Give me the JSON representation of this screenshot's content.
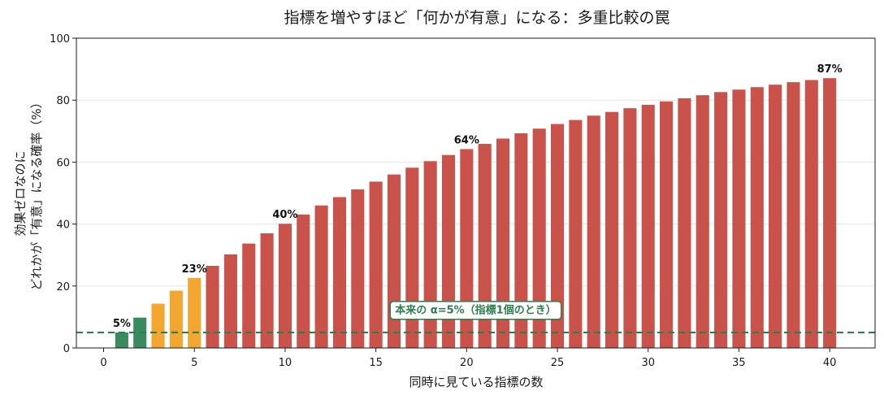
{
  "chart_data": {
    "type": "bar",
    "title": "指標を増やすほど「何かが有意」になる：多重比較の罠",
    "xlabel": "同時に見ている指標の数",
    "ylabel_lines": [
      "効果ゼロなのに",
      "どれかが「有意」になる確率（%）"
    ],
    "x": [
      1,
      2,
      3,
      4,
      5,
      6,
      7,
      8,
      9,
      10,
      11,
      12,
      13,
      14,
      15,
      16,
      17,
      18,
      19,
      20,
      21,
      22,
      23,
      24,
      25,
      26,
      27,
      28,
      29,
      30,
      31,
      32,
      33,
      34,
      35,
      36,
      37,
      38,
      39,
      40
    ],
    "values": [
      5.0,
      9.8,
      14.3,
      18.5,
      22.6,
      26.5,
      30.2,
      33.7,
      37.0,
      40.1,
      43.1,
      46.0,
      48.7,
      51.2,
      53.7,
      56.0,
      58.2,
      60.3,
      62.3,
      64.2,
      65.9,
      67.6,
      69.3,
      70.8,
      72.3,
      73.6,
      75.0,
      76.2,
      77.4,
      78.5,
      79.6,
      80.6,
      81.6,
      82.6,
      83.4,
      84.2,
      85.0,
      85.8,
      86.5,
      87.1
    ],
    "colors": {
      "low": "#3a8a60",
      "mid": "#f2a630",
      "high": "#c9524a",
      "reference": "#2e7d4f"
    },
    "color_bands": [
      {
        "from": 1,
        "to": 2,
        "color": "low"
      },
      {
        "from": 3,
        "to": 5,
        "color": "mid"
      },
      {
        "from": 6,
        "to": 40,
        "color": "high"
      }
    ],
    "annotations": [
      {
        "x": 1,
        "text": "5%"
      },
      {
        "x": 5,
        "text": "23%"
      },
      {
        "x": 10,
        "text": "40%"
      },
      {
        "x": 20,
        "text": "64%"
      },
      {
        "x": 40,
        "text": "87%"
      }
    ],
    "reference_line": {
      "y": 5,
      "label": "本来の α=5%（指標1個のとき）"
    },
    "xlim": [
      -1.5,
      42.5
    ],
    "ylim": [
      0,
      100
    ],
    "xticks": [
      0,
      5,
      10,
      15,
      20,
      25,
      30,
      35,
      40
    ],
    "yticks": [
      0,
      20,
      40,
      60,
      80,
      100
    ],
    "grid": "horizontal",
    "legend": "none"
  }
}
